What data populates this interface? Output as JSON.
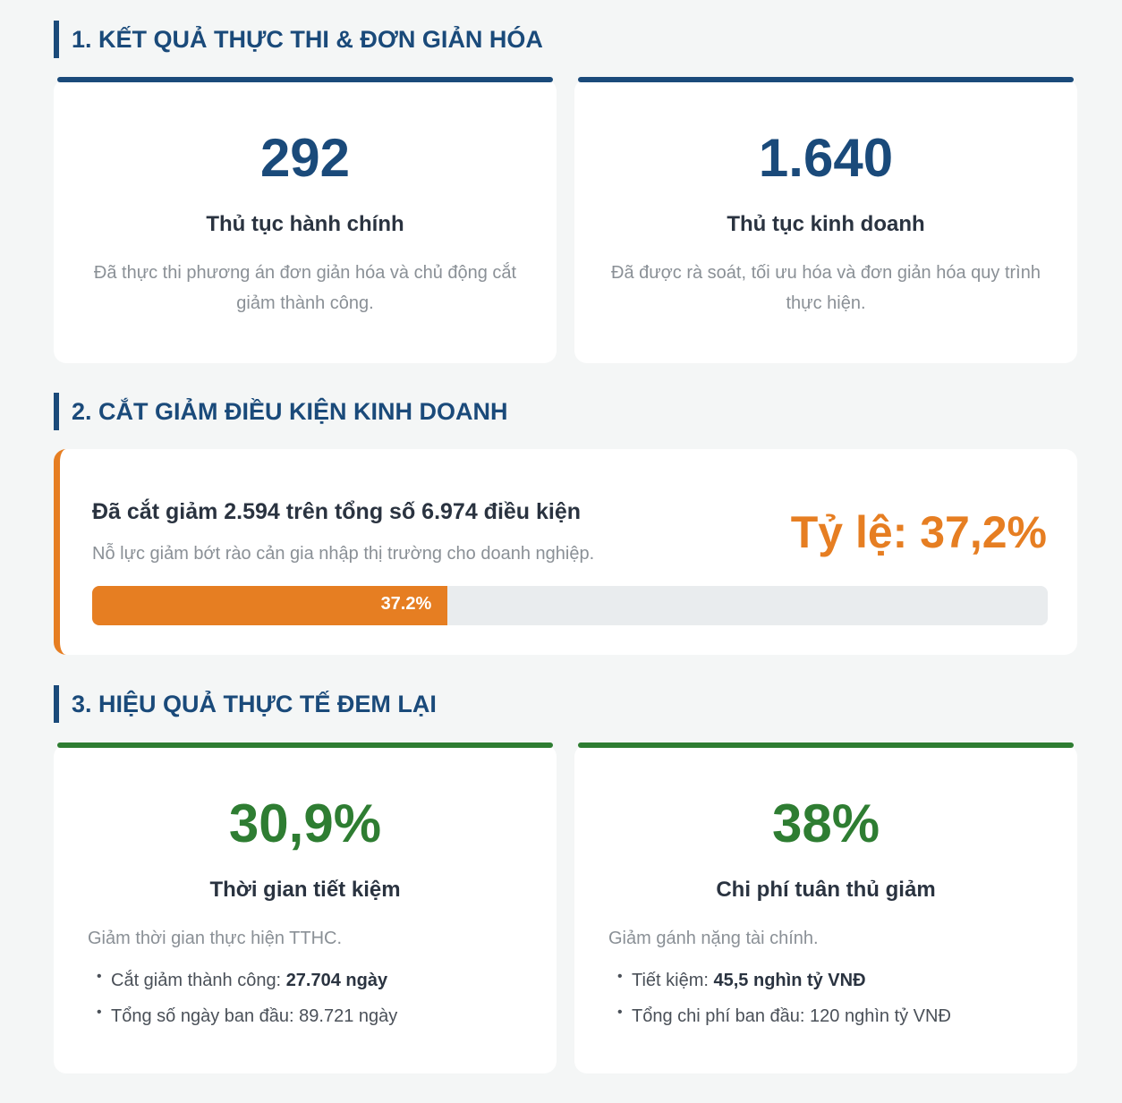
{
  "section1": {
    "title": "1. KẾT QUẢ THỰC THI & ĐƠN GIẢN HÓA",
    "cards": [
      {
        "value": "292",
        "label": "Thủ tục hành chính",
        "desc": "Đã thực thi phương án đơn giản hóa và chủ động cắt giảm thành công."
      },
      {
        "value": "1.640",
        "label": "Thủ tục kinh doanh",
        "desc": "Đã được rà soát, tối ưu hóa và đơn giản hóa quy trình thực hiện."
      }
    ]
  },
  "section2": {
    "title": "2. CẮT GIẢM ĐIỀU KIỆN KINH DOANH",
    "headline": "Đã cắt giảm 2.594 trên tổng số 6.974 điều kiện",
    "subtitle": "Nỗ lực giảm bớt rào cản gia nhập thị trường cho doanh nghiệp.",
    "ratio_text": "Tỷ lệ: 37,2%",
    "progress_label": "37.2%",
    "progress_percent": 37.2
  },
  "section3": {
    "title": "3. HIỆU QUẢ THỰC TẾ ĐEM LẠI",
    "cards": [
      {
        "value": "30,9%",
        "label": "Thời gian tiết kiệm",
        "desc": "Giảm thời gian thực hiện TTHC.",
        "bullets": [
          {
            "text": "Cắt giảm thành công: ",
            "bold": "27.704 ngày"
          },
          {
            "text": "Tổng số ngày ban đầu: 89.721 ngày",
            "bold": ""
          }
        ]
      },
      {
        "value": "38%",
        "label": "Chi phí tuân thủ giảm",
        "desc": "Giảm gánh nặng tài chính.",
        "bullets": [
          {
            "text": "Tiết kiệm: ",
            "bold": "45,5 nghìn tỷ VNĐ"
          },
          {
            "text": "Tổng chi phí ban đầu: 120 nghìn tỷ VNĐ",
            "bold": ""
          }
        ]
      }
    ]
  },
  "colors": {
    "primary": "#1a4a7a",
    "accent": "#e67e22",
    "success": "#2e7d32"
  }
}
